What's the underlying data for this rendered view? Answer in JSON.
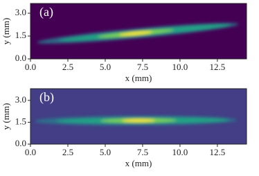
{
  "chart_data": [
    {
      "type": "heatmap",
      "panel_label": "(a)",
      "xlabel": "x (mm)",
      "ylabel": "y (mm)",
      "background": "#440154",
      "xlim": [
        0,
        14.45
      ],
      "ylim": [
        0,
        3.64
      ],
      "xticks": [
        {
          "value": 0,
          "label": "0.0"
        },
        2.5,
        {
          "value": 5,
          "label": "5.0"
        },
        7.5,
        {
          "value": 10,
          "label": "10.0"
        },
        12.5
      ],
      "yticks": [
        {
          "value": 0,
          "label": "0.0"
        },
        1.5,
        {
          "value": 3,
          "label": "3.0"
        }
      ]
    },
    {
      "type": "heatmap",
      "panel_label": "(b)",
      "xlabel": "x (mm)",
      "ylabel": "y (mm)",
      "background": "#433e85",
      "xlim": [
        0,
        14.45
      ],
      "ylim": [
        0,
        3.8
      ],
      "xticks": [
        {
          "value": 0,
          "label": "0.0"
        },
        2.5,
        {
          "value": 5,
          "label": "5.0"
        },
        7.5,
        {
          "value": 10,
          "label": "10.0"
        },
        12.5
      ],
      "yticks": [
        {
          "value": 0,
          "label": "0.0"
        },
        1.5,
        {
          "value": 3,
          "label": "3.0"
        }
      ]
    }
  ]
}
